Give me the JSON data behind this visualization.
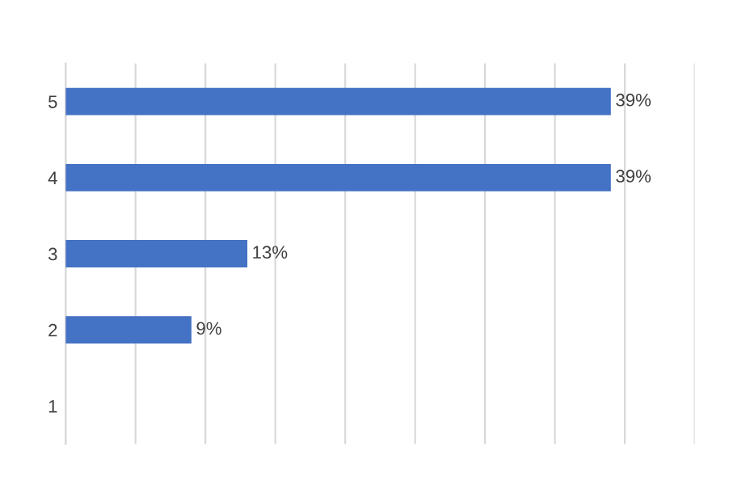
{
  "chart_data": {
    "type": "bar",
    "orientation": "horizontal",
    "categories": [
      "5",
      "4",
      "3",
      "2",
      "1"
    ],
    "values": [
      39,
      39,
      13,
      9,
      0
    ],
    "value_labels": [
      "39%",
      "39%",
      "13%",
      "9%",
      null
    ],
    "color": "#4472c4",
    "xlim": [
      0,
      45
    ],
    "xticks": [
      {
        "value": 0,
        "label": null
      },
      {
        "value": 5,
        "label": null
      },
      {
        "value": 10,
        "label": null
      },
      {
        "value": 15,
        "label": null
      },
      {
        "value": 20,
        "label": null
      },
      {
        "value": 25,
        "label": null
      },
      {
        "value": 30,
        "label": null
      },
      {
        "value": 35,
        "label": null
      },
      {
        "value": 40,
        "label": null
      },
      {
        "value": 45,
        "label": null
      }
    ],
    "grid": "x",
    "tick_labels": "y"
  }
}
